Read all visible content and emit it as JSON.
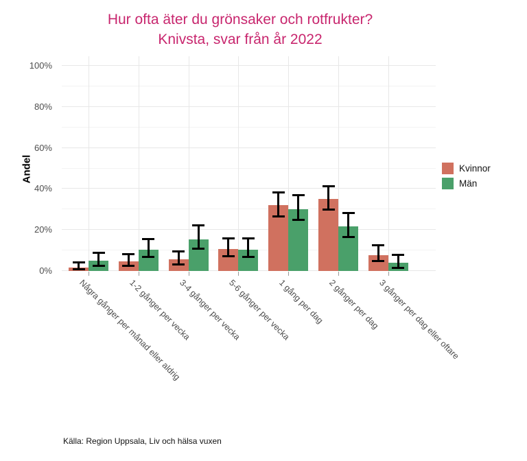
{
  "source": "Källa: Region Uppsala, Liv och hälsa vuxen",
  "colors": {
    "title": "#C8266E",
    "axis_text": "#4D4D4D",
    "grid_major": "#E7E7E7",
    "grid_minor": "#F3F3F3",
    "error_bar": "#000000",
    "kvinnor": "#D0715F",
    "man": "#4AA06A"
  },
  "chart_data": {
    "type": "bar",
    "title": "Hur ofta äter du grönsaker och rotfrukter?",
    "subtitle": "Knivsta, svar från år 2022",
    "xlabel": "",
    "ylabel": "Andel",
    "ylim": [
      0,
      100
    ],
    "y_tick_values": [
      0,
      20,
      40,
      60,
      80,
      100
    ],
    "y_tick_labels": [
      "0%",
      "20%",
      "40%",
      "60%",
      "80%",
      "100%"
    ],
    "y_minor_ticks": [
      10,
      30,
      50,
      70,
      90
    ],
    "grid": true,
    "legend_position": "right",
    "error_bars": true,
    "categories": [
      "Några gånger per månad eller aldrig",
      "1-2 gånger per vecka",
      "3-4 gånger per vecka",
      "5-6 gånger per vecka",
      "1 gång per dag",
      "2 gånger per dag",
      "3 gånger per dag eller oftare"
    ],
    "series": [
      {
        "name": "Kvinnor",
        "color": "#D0715F",
        "values": [
          1.8,
          4.7,
          5.8,
          10.7,
          32.2,
          35.2,
          7.8
        ],
        "ci_low": [
          0.8,
          2.4,
          3.2,
          7.2,
          26.7,
          30.0,
          4.8
        ],
        "ci_high": [
          4.3,
          8.3,
          9.5,
          15.8,
          38.3,
          41.4,
          12.6
        ]
      },
      {
        "name": "Män",
        "color": "#4AA06A",
        "values": [
          5.0,
          10.5,
          15.3,
          10.4,
          30.2,
          21.9,
          3.9
        ],
        "ci_low": [
          2.6,
          6.7,
          10.8,
          6.7,
          25.0,
          16.7,
          1.4
        ],
        "ci_high": [
          8.9,
          15.6,
          22.2,
          15.9,
          37.0,
          28.3,
          8.0
        ]
      }
    ]
  }
}
